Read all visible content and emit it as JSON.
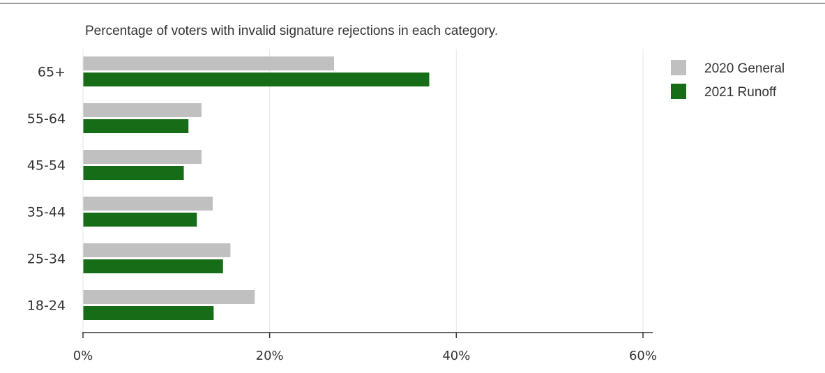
{
  "chart_data": {
    "type": "bar",
    "orientation": "horizontal",
    "title": "Percentage of voters with invalid signature rejections in each category.",
    "categories": [
      "65+",
      "55-64",
      "45-54",
      "35-44",
      "25-34",
      "18-24"
    ],
    "series": [
      {
        "name": "2020 General",
        "color": "#c0c0c0",
        "values": [
          26.9,
          12.7,
          12.7,
          13.9,
          15.8,
          18.4
        ]
      },
      {
        "name": "2021 Runoff",
        "color": "#176d17",
        "values": [
          37.1,
          11.3,
          10.8,
          12.2,
          15.0,
          14.0
        ]
      }
    ],
    "xlim": [
      0,
      60
    ],
    "xticks": [
      0,
      20,
      40,
      60
    ],
    "tick_labels": [
      "0%",
      "20%",
      "40%",
      "60%"
    ],
    "xlabel": "",
    "ylabel": "",
    "grid": true,
    "legend_position": "top-right"
  }
}
